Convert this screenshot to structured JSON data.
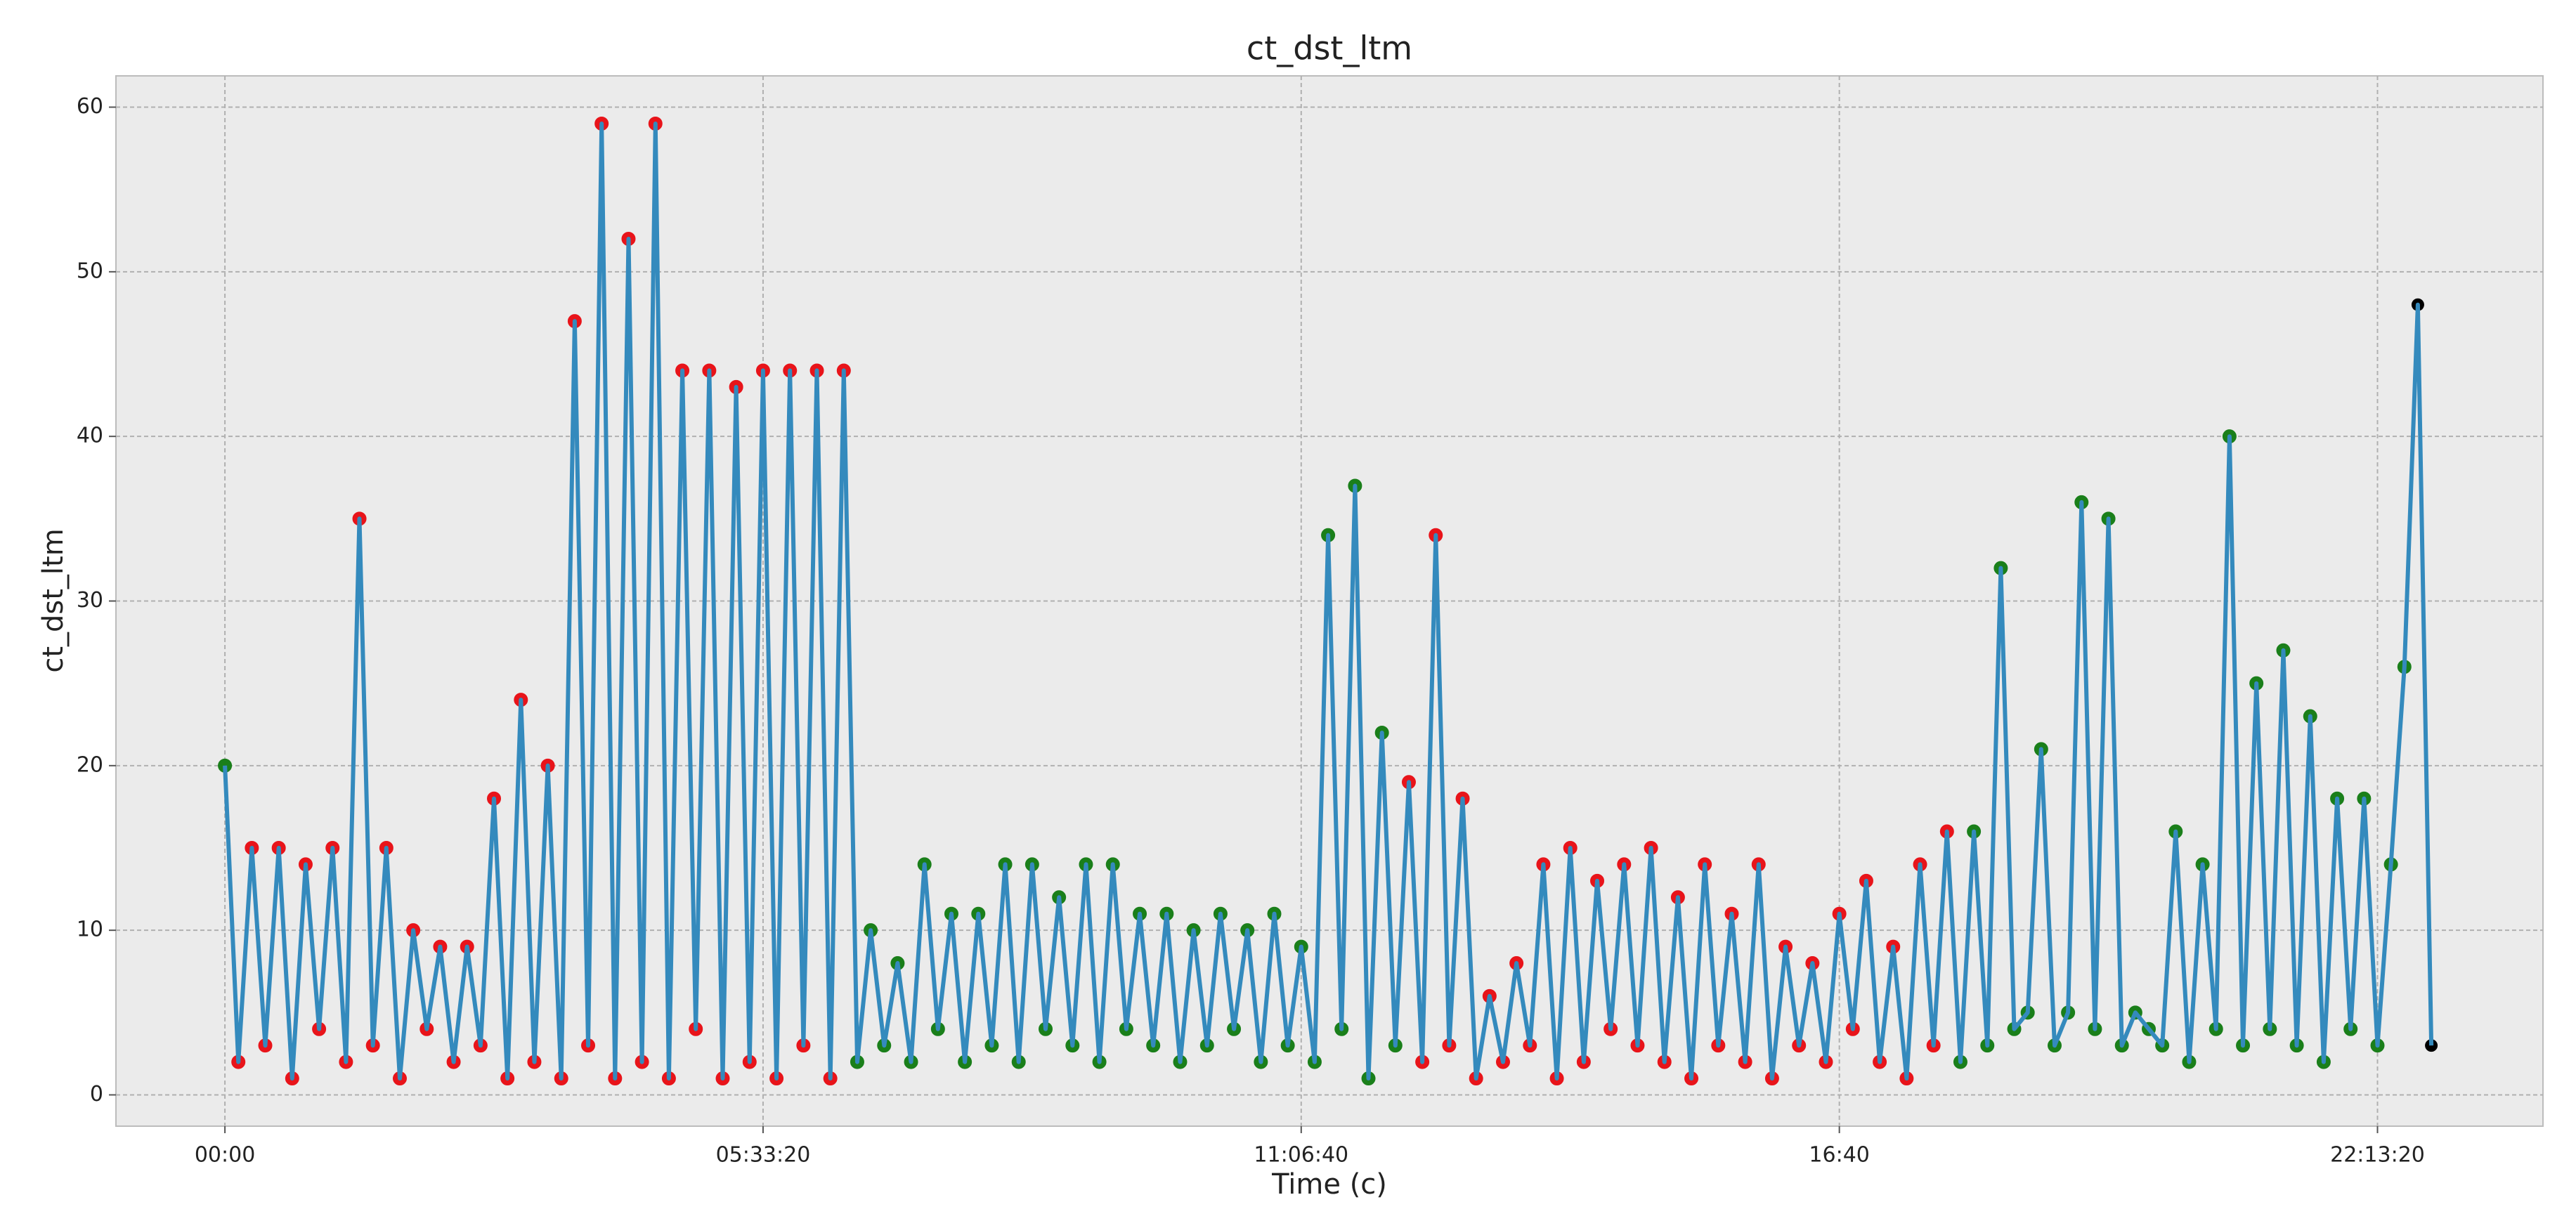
{
  "chart_data": {
    "type": "line",
    "title": "ct_dst_ltm",
    "xlabel": "Time (c)",
    "ylabel": "ct_dst_ltm",
    "xlim": [
      -4050,
      86150
    ],
    "ylim": [
      -1.9,
      61.9
    ],
    "xticks": [
      {
        "value": 0,
        "label": "00:00"
      },
      {
        "value": 20000,
        "label": "05:33:20"
      },
      {
        "value": 40000,
        "label": "11:06:40"
      },
      {
        "value": 60000,
        "label": "16:40"
      },
      {
        "value": 80000,
        "label": "22:13:20"
      }
    ],
    "yticks": [
      0,
      10,
      20,
      30,
      40,
      50,
      60
    ],
    "grid": true,
    "series": [
      {
        "color": "#348abd",
        "x": [
          0,
          500,
          1000,
          1500,
          2000,
          2500,
          3000,
          3500,
          4000,
          4500,
          5000,
          5500,
          6000,
          6500,
          7000,
          7500,
          8000,
          8500,
          9000,
          9500,
          10000,
          10500,
          11000,
          11500,
          12000,
          12500,
          13000,
          13500,
          14000,
          14500,
          15000,
          15500,
          16000,
          16500,
          17000,
          17500,
          18000,
          18500,
          19000,
          19500,
          20000,
          20500,
          21000,
          21500,
          22000,
          22500,
          23000,
          23500,
          24000,
          24500,
          25000,
          25500,
          26000,
          26500,
          27000,
          27500,
          28000,
          28500,
          29000,
          29500,
          30000,
          30500,
          31000,
          31500,
          32000,
          32500,
          33000,
          33500,
          34000,
          34500,
          35000,
          35500,
          36000,
          36500,
          37000,
          37500,
          38000,
          38500,
          39000,
          39500,
          40000,
          40500,
          41000,
          41500,
          42000,
          42500,
          43000,
          43500,
          44000,
          44500,
          45000,
          45500,
          46000,
          46500,
          47000,
          47500,
          48000,
          48500,
          49000,
          49500,
          50000,
          50500,
          51000,
          51500,
          52000,
          52500,
          53000,
          53500,
          54000,
          54500,
          55000,
          55500,
          56000,
          56500,
          57000,
          57500,
          58000,
          58500,
          59000,
          59500,
          60000,
          60500,
          61000,
          61500,
          62000,
          62500,
          63000,
          63500,
          64000,
          64500,
          65000,
          65500,
          66000,
          66500,
          67000,
          67500,
          68000,
          68500,
          69000,
          69500,
          70000,
          70500,
          71000,
          71500,
          72000,
          72500,
          73000,
          73500,
          74000,
          74500,
          75000,
          75500,
          76000,
          76500,
          77000,
          77500,
          78000,
          78500,
          79000,
          79500,
          80000,
          80500,
          81000,
          81500,
          82000
        ],
        "values": [
          20,
          2,
          15,
          3,
          15,
          1,
          14,
          4,
          15,
          2,
          35,
          3,
          15,
          1,
          10,
          4,
          9,
          2,
          9,
          3,
          18,
          1,
          24,
          2,
          20,
          1,
          47,
          3,
          59,
          1,
          52,
          2,
          59,
          1,
          44,
          4,
          44,
          1,
          43,
          2,
          44,
          1,
          44,
          3,
          44,
          1,
          44,
          2,
          10,
          3,
          8,
          2,
          14,
          4,
          11,
          2,
          11,
          3,
          14,
          2,
          14,
          4,
          12,
          3,
          14,
          2,
          14,
          4,
          11,
          3,
          11,
          2,
          10,
          3,
          11,
          4,
          10,
          2,
          11,
          3,
          9,
          2,
          34,
          4,
          37,
          1,
          22,
          3,
          19,
          2,
          34,
          3,
          18,
          1,
          6,
          2,
          8,
          3,
          14,
          1,
          15,
          2,
          13,
          4,
          14,
          3,
          15,
          2,
          12,
          1,
          14,
          3,
          11,
          2,
          14,
          1,
          9,
          3,
          8,
          2,
          11,
          4,
          13,
          2,
          9,
          1,
          14,
          3,
          16,
          2,
          16,
          3,
          32,
          4,
          5,
          21,
          3,
          5,
          36,
          4,
          35,
          3,
          5,
          4,
          3,
          16,
          2,
          14,
          4,
          40,
          3,
          25,
          4,
          27,
          3,
          23,
          2,
          18,
          4,
          18,
          3,
          14,
          26,
          48,
          3
        ],
        "marker_colors": [
          "#1a7f1a",
          "#e8141a",
          "#e8141a",
          "#e8141a",
          "#e8141a",
          "#e8141a",
          "#e8141a",
          "#e8141a",
          "#e8141a",
          "#e8141a",
          "#e8141a",
          "#e8141a",
          "#e8141a",
          "#e8141a",
          "#e8141a",
          "#e8141a",
          "#e8141a",
          "#e8141a",
          "#e8141a",
          "#e8141a",
          "#e8141a",
          "#e8141a",
          "#e8141a",
          "#e8141a",
          "#e8141a",
          "#e8141a",
          "#e8141a",
          "#e8141a",
          "#e8141a",
          "#e8141a",
          "#e8141a",
          "#e8141a",
          "#e8141a",
          "#e8141a",
          "#e8141a",
          "#e8141a",
          "#e8141a",
          "#e8141a",
          "#e8141a",
          "#e8141a",
          "#e8141a",
          "#e8141a",
          "#e8141a",
          "#e8141a",
          "#e8141a",
          "#e8141a",
          "#e8141a",
          "#1a7f1a",
          "#1a7f1a",
          "#1a7f1a",
          "#1a7f1a",
          "#1a7f1a",
          "#1a7f1a",
          "#1a7f1a",
          "#1a7f1a",
          "#1a7f1a",
          "#1a7f1a",
          "#1a7f1a",
          "#1a7f1a",
          "#1a7f1a",
          "#1a7f1a",
          "#1a7f1a",
          "#1a7f1a",
          "#1a7f1a",
          "#1a7f1a",
          "#1a7f1a",
          "#1a7f1a",
          "#1a7f1a",
          "#1a7f1a",
          "#1a7f1a",
          "#1a7f1a",
          "#1a7f1a",
          "#1a7f1a",
          "#1a7f1a",
          "#1a7f1a",
          "#1a7f1a",
          "#1a7f1a",
          "#1a7f1a",
          "#1a7f1a",
          "#1a7f1a",
          "#1a7f1a",
          "#1a7f1a",
          "#1a7f1a",
          "#1a7f1a",
          "#1a7f1a",
          "#1a7f1a",
          "#1a7f1a",
          "#1a7f1a",
          "#e8141a",
          "#e8141a",
          "#e8141a",
          "#e8141a",
          "#e8141a",
          "#e8141a",
          "#e8141a",
          "#e8141a",
          "#e8141a",
          "#e8141a",
          "#e8141a",
          "#e8141a",
          "#e8141a",
          "#e8141a",
          "#e8141a",
          "#e8141a",
          "#e8141a",
          "#e8141a",
          "#e8141a",
          "#e8141a",
          "#e8141a",
          "#e8141a",
          "#e8141a",
          "#e8141a",
          "#e8141a",
          "#e8141a",
          "#e8141a",
          "#e8141a",
          "#e8141a",
          "#e8141a",
          "#e8141a",
          "#e8141a",
          "#e8141a",
          "#e8141a",
          "#e8141a",
          "#e8141a",
          "#e8141a",
          "#e8141a",
          "#e8141a",
          "#e8141a",
          "#e8141a",
          "#1a7f1a",
          "#1a7f1a",
          "#1a7f1a",
          "#1a7f1a",
          "#1a7f1a",
          "#1a7f1a",
          "#1a7f1a",
          "#1a7f1a",
          "#1a7f1a",
          "#1a7f1a",
          "#1a7f1a",
          "#1a7f1a",
          "#1a7f1a",
          "#1a7f1a",
          "#1a7f1a",
          "#1a7f1a",
          "#1a7f1a",
          "#1a7f1a",
          "#1a7f1a",
          "#1a7f1a",
          "#1a7f1a",
          "#1a7f1a",
          "#1a7f1a",
          "#1a7f1a",
          "#1a7f1a",
          "#1a7f1a",
          "#1a7f1a",
          "#1a7f1a",
          "#1a7f1a",
          "#1a7f1a",
          "#1a7f1a",
          "#1a7f1a",
          "#1a7f1a",
          "#1a7f1a"
        ]
      }
    ]
  }
}
